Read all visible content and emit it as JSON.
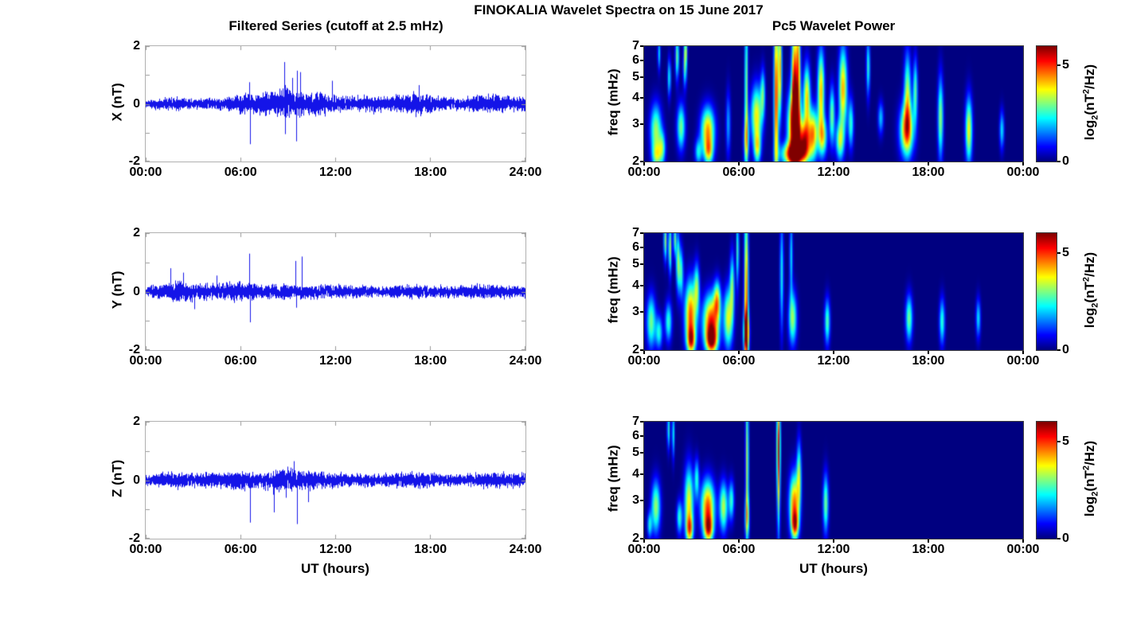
{
  "figure": {
    "title": "FINOKALIA Wavelet Spectra on 15 June 2017",
    "background": "#ffffff",
    "line_color": "#0000ee",
    "colormap": "jet"
  },
  "chart_data": [
    {
      "type": "line",
      "id": "x-filtered-series",
      "title": "Filtered Series (cutoff at 2.5 mHz)",
      "ylabel": "X (nT)",
      "xlabel": "",
      "ylim": [
        -2,
        2
      ],
      "yticks": [
        {
          "v": 2,
          "label": "2"
        },
        {
          "v": 0,
          "label": "0"
        },
        {
          "v": -2,
          "label": "-2"
        }
      ],
      "yticks_minor": [
        1,
        -1
      ],
      "x_range_hours": [
        0,
        24
      ],
      "xticks": [
        {
          "h": 0,
          "label": "00:00"
        },
        {
          "h": 6,
          "label": "06:00"
        },
        {
          "h": 12,
          "label": "12:00"
        },
        {
          "h": 18,
          "label": "18:00"
        },
        {
          "h": 24,
          "label": "24:00"
        }
      ],
      "envelope_step_hours": 1,
      "envelope_nT": [
        0.16,
        0.2,
        0.24,
        0.18,
        0.2,
        0.24,
        0.38,
        0.36,
        0.48,
        0.55,
        0.42,
        0.45,
        0.32,
        0.28,
        0.32,
        0.3,
        0.3,
        0.42,
        0.32,
        0.24,
        0.2,
        0.32,
        0.34,
        0.28,
        0.26
      ],
      "spikes_t_v": [
        [
          6.55,
          0.75
        ],
        [
          6.6,
          -1.4
        ],
        [
          8.8,
          1.45
        ],
        [
          8.85,
          -1.05
        ],
        [
          9.3,
          0.9
        ],
        [
          9.55,
          -1.3
        ],
        [
          9.6,
          1.15
        ],
        [
          9.8,
          1.1
        ],
        [
          11.8,
          0.8
        ],
        [
          17.3,
          0.65
        ]
      ]
    },
    {
      "type": "line",
      "id": "y-filtered-series",
      "title": "",
      "ylabel": "Y (nT)",
      "xlabel": "",
      "ylim": [
        -2,
        2
      ],
      "yticks": [
        {
          "v": 2,
          "label": "2"
        },
        {
          "v": 0,
          "label": "0"
        },
        {
          "v": -2,
          "label": "-2"
        }
      ],
      "yticks_minor": [
        1,
        -1
      ],
      "x_range_hours": [
        0,
        24
      ],
      "xticks": [
        {
          "h": 0,
          "label": "00:00"
        },
        {
          "h": 6,
          "label": "06:00"
        },
        {
          "h": 12,
          "label": "12:00"
        },
        {
          "h": 18,
          "label": "18:00"
        },
        {
          "h": 24,
          "label": "24:00"
        }
      ],
      "envelope_step_hours": 1,
      "envelope_nT": [
        0.18,
        0.26,
        0.38,
        0.3,
        0.32,
        0.28,
        0.34,
        0.28,
        0.28,
        0.3,
        0.26,
        0.28,
        0.24,
        0.2,
        0.22,
        0.18,
        0.22,
        0.26,
        0.22,
        0.2,
        0.2,
        0.26,
        0.24,
        0.22,
        0.22
      ],
      "spikes_t_v": [
        [
          1.6,
          0.8
        ],
        [
          2.4,
          0.65
        ],
        [
          3.1,
          -0.6
        ],
        [
          4.5,
          0.55
        ],
        [
          6.55,
          1.3
        ],
        [
          6.6,
          -1.05
        ],
        [
          9.5,
          1.05
        ],
        [
          9.55,
          -0.55
        ],
        [
          9.9,
          1.2
        ]
      ]
    },
    {
      "type": "line",
      "id": "z-filtered-series",
      "title": "",
      "ylabel": "Z (nT)",
      "xlabel": "UT (hours)",
      "ylim": [
        -2,
        2
      ],
      "yticks": [
        {
          "v": 2,
          "label": "2"
        },
        {
          "v": 0,
          "label": "0"
        },
        {
          "v": -2,
          "label": "-2"
        }
      ],
      "yticks_minor": [
        1,
        -1
      ],
      "x_range_hours": [
        0,
        24
      ],
      "xticks": [
        {
          "h": 0,
          "label": "00:00"
        },
        {
          "h": 6,
          "label": "06:00"
        },
        {
          "h": 12,
          "label": "12:00"
        },
        {
          "h": 18,
          "label": "18:00"
        },
        {
          "h": 24,
          "label": "24:00"
        }
      ],
      "envelope_step_hours": 1,
      "envelope_nT": [
        0.18,
        0.26,
        0.3,
        0.22,
        0.28,
        0.28,
        0.34,
        0.3,
        0.36,
        0.42,
        0.34,
        0.3,
        0.28,
        0.22,
        0.26,
        0.22,
        0.3,
        0.26,
        0.3,
        0.22,
        0.22,
        0.26,
        0.28,
        0.26,
        0.26
      ],
      "spikes_t_v": [
        [
          6.6,
          -1.45
        ],
        [
          8.1,
          -1.1
        ],
        [
          8.9,
          -0.6
        ],
        [
          9.4,
          0.65
        ],
        [
          9.6,
          -1.5
        ],
        [
          10.3,
          -0.75
        ]
      ]
    },
    {
      "type": "heatmap",
      "id": "x-wavelet-power",
      "title": "Pc5 Wavelet Power",
      "ylabel": "freq (mHz)",
      "xlabel": "",
      "yscale": "log",
      "ylim_mhz": [
        2,
        7
      ],
      "yticks": [
        7,
        6,
        5,
        4,
        3,
        2
      ],
      "x_range_hours": [
        0,
        24
      ],
      "xticks": [
        {
          "h": 0,
          "label": "00:00"
        },
        {
          "h": 6,
          "label": "06:00"
        },
        {
          "h": 12,
          "label": "12:00"
        },
        {
          "h": 18,
          "label": "18:00"
        },
        {
          "h": 24,
          "label": "00:00"
        }
      ],
      "colorbar": {
        "min": 0,
        "max": 6,
        "ticks": [
          {
            "v": 5,
            "label": "5"
          },
          {
            "v": 0,
            "label": "0"
          }
        ],
        "label_parts": {
          "pre": "log",
          "sub": "2",
          "mid": "(nT",
          "sup": "2",
          "post": "/Hz)"
        }
      },
      "blob_format": [
        "t_hours",
        "freq_mhz",
        "sigma_t_hours",
        "sigma_lognorm",
        "power_log2"
      ],
      "blobs": [
        [
          0.7,
          2.8,
          0.25,
          0.16,
          3.2
        ],
        [
          0.75,
          2.1,
          0.2,
          0.08,
          2.5
        ],
        [
          1.1,
          2.3,
          0.15,
          0.1,
          2.5
        ],
        [
          0.9,
          6.5,
          0.06,
          0.1,
          2.2
        ],
        [
          1.55,
          5.0,
          0.07,
          0.12,
          2.4
        ],
        [
          2.05,
          6.3,
          0.08,
          0.14,
          3.0
        ],
        [
          2.3,
          2.9,
          0.18,
          0.14,
          3.0
        ],
        [
          2.55,
          5.6,
          0.08,
          0.12,
          2.8
        ],
        [
          2.6,
          6.8,
          0.07,
          0.08,
          2.6
        ],
        [
          3.4,
          2.2,
          0.15,
          0.08,
          2.2
        ],
        [
          4.0,
          2.8,
          0.3,
          0.14,
          4.3
        ],
        [
          4.05,
          2.2,
          0.2,
          0.08,
          3.0
        ],
        [
          5.3,
          3.0,
          0.1,
          0.2,
          1.8
        ],
        [
          6.45,
          4.5,
          0.07,
          0.5,
          3.2
        ],
        [
          6.45,
          2.5,
          0.12,
          0.15,
          2.6
        ],
        [
          7.1,
          3.3,
          0.25,
          0.18,
          3.8
        ],
        [
          7.15,
          2.3,
          0.15,
          0.1,
          3.0
        ],
        [
          7.5,
          4.2,
          0.1,
          0.15,
          2.5
        ],
        [
          8.35,
          4.0,
          0.1,
          0.55,
          5.2
        ],
        [
          8.6,
          5.5,
          0.08,
          0.3,
          4.0
        ],
        [
          9.5,
          2.9,
          0.28,
          0.22,
          6.0
        ],
        [
          9.5,
          4.8,
          0.12,
          0.35,
          5.0
        ],
        [
          9.75,
          5.5,
          0.1,
          0.4,
          4.2
        ],
        [
          9.5,
          2.15,
          0.55,
          0.07,
          5.2
        ],
        [
          10.15,
          2.5,
          0.25,
          0.12,
          4.6
        ],
        [
          10.3,
          4.0,
          0.15,
          0.2,
          4.0
        ],
        [
          10.7,
          2.7,
          0.2,
          0.15,
          4.2
        ],
        [
          11.2,
          4.3,
          0.15,
          0.25,
          4.2
        ],
        [
          11.3,
          2.6,
          0.2,
          0.12,
          3.4
        ],
        [
          11.9,
          3.3,
          0.12,
          0.18,
          3.0
        ],
        [
          12.6,
          4.4,
          0.18,
          0.25,
          4.3
        ],
        [
          12.4,
          2.5,
          0.18,
          0.12,
          3.2
        ],
        [
          13.1,
          3.0,
          0.12,
          0.15,
          2.6
        ],
        [
          14.2,
          5.6,
          0.08,
          0.18,
          2.6
        ],
        [
          15.0,
          3.2,
          0.12,
          0.1,
          2.0
        ],
        [
          16.65,
          2.8,
          0.3,
          0.16,
          4.6
        ],
        [
          16.7,
          4.2,
          0.15,
          0.25,
          3.2
        ],
        [
          17.2,
          4.3,
          0.1,
          0.2,
          2.8
        ],
        [
          18.8,
          3.2,
          0.12,
          0.25,
          3.2
        ],
        [
          20.6,
          2.8,
          0.15,
          0.2,
          3.8
        ],
        [
          22.7,
          2.8,
          0.1,
          0.12,
          2.2
        ]
      ]
    },
    {
      "type": "heatmap",
      "id": "y-wavelet-power",
      "title": "",
      "ylabel": "freq (mHz)",
      "xlabel": "",
      "yscale": "log",
      "ylim_mhz": [
        2,
        7
      ],
      "yticks": [
        7,
        6,
        5,
        4,
        3,
        2
      ],
      "x_range_hours": [
        0,
        24
      ],
      "xticks": [
        {
          "h": 0,
          "label": "00:00"
        },
        {
          "h": 6,
          "label": "06:00"
        },
        {
          "h": 12,
          "label": "12:00"
        },
        {
          "h": 18,
          "label": "18:00"
        },
        {
          "h": 24,
          "label": "00:00"
        }
      ],
      "colorbar": {
        "min": 0,
        "max": 6,
        "ticks": [
          {
            "v": 5,
            "label": "5"
          },
          {
            "v": 0,
            "label": "0"
          }
        ],
        "label_parts": {
          "pre": "log",
          "sub": "2",
          "mid": "(nT",
          "sup": "2",
          "post": "/Hz)"
        }
      },
      "blob_format": [
        "t_hours",
        "freq_mhz",
        "sigma_t_hours",
        "sigma_lognorm",
        "power_log2"
      ],
      "blobs": [
        [
          0.4,
          2.7,
          0.2,
          0.16,
          3.0
        ],
        [
          0.9,
          2.4,
          0.15,
          0.1,
          2.4
        ],
        [
          1.3,
          6.5,
          0.07,
          0.12,
          3.2
        ],
        [
          1.6,
          6.0,
          0.07,
          0.15,
          3.4
        ],
        [
          1.9,
          6.6,
          0.06,
          0.1,
          3.0
        ],
        [
          1.5,
          2.7,
          0.15,
          0.12,
          2.6
        ],
        [
          2.1,
          5.2,
          0.08,
          0.18,
          3.0
        ],
        [
          2.3,
          4.6,
          0.1,
          0.15,
          2.6
        ],
        [
          2.9,
          2.9,
          0.25,
          0.2,
          4.8
        ],
        [
          2.95,
          2.2,
          0.18,
          0.08,
          3.6
        ],
        [
          3.3,
          3.9,
          0.12,
          0.15,
          2.8
        ],
        [
          4.2,
          2.7,
          0.35,
          0.16,
          5.0
        ],
        [
          4.25,
          2.2,
          0.25,
          0.08,
          4.2
        ],
        [
          4.6,
          3.4,
          0.15,
          0.12,
          3.4
        ],
        [
          5.3,
          2.8,
          0.2,
          0.18,
          3.6
        ],
        [
          5.55,
          4.0,
          0.1,
          0.2,
          2.8
        ],
        [
          5.9,
          5.8,
          0.06,
          0.22,
          2.8
        ],
        [
          6.45,
          3.5,
          0.09,
          0.55,
          4.8
        ],
        [
          6.45,
          2.4,
          0.12,
          0.12,
          4.4
        ],
        [
          8.7,
          4.5,
          0.08,
          0.35,
          2.4
        ],
        [
          9.4,
          2.8,
          0.18,
          0.16,
          3.2
        ],
        [
          9.3,
          5.5,
          0.07,
          0.25,
          2.2
        ],
        [
          11.6,
          2.7,
          0.12,
          0.14,
          2.8
        ],
        [
          16.8,
          2.8,
          0.15,
          0.14,
          3.0
        ],
        [
          18.9,
          2.7,
          0.12,
          0.14,
          2.6
        ],
        [
          21.2,
          2.8,
          0.1,
          0.12,
          2.2
        ]
      ]
    },
    {
      "type": "heatmap",
      "id": "z-wavelet-power",
      "title": "",
      "ylabel": "freq (mHz)",
      "xlabel": "UT (hours)",
      "yscale": "log",
      "ylim_mhz": [
        2,
        7
      ],
      "yticks": [
        7,
        6,
        5,
        4,
        3,
        2
      ],
      "x_range_hours": [
        0,
        24
      ],
      "xticks": [
        {
          "h": 0,
          "label": "00:00"
        },
        {
          "h": 6,
          "label": "06:00"
        },
        {
          "h": 12,
          "label": "12:00"
        },
        {
          "h": 18,
          "label": "18:00"
        },
        {
          "h": 24,
          "label": "00:00"
        }
      ],
      "colorbar": {
        "min": 0,
        "max": 6,
        "ticks": [
          {
            "v": 5,
            "label": "5"
          },
          {
            "v": 0,
            "label": "0"
          }
        ],
        "label_parts": {
          "pre": "log",
          "sub": "2",
          "mid": "(nT",
          "sup": "2",
          "post": "/Hz)"
        }
      },
      "blob_format": [
        "t_hours",
        "freq_mhz",
        "sigma_t_hours",
        "sigma_lognorm",
        "power_log2"
      ],
      "blobs": [
        [
          0.3,
          2.3,
          0.1,
          0.08,
          2.2
        ],
        [
          0.7,
          2.8,
          0.2,
          0.16,
          3.2
        ],
        [
          1.5,
          6.5,
          0.06,
          0.12,
          2.6
        ],
        [
          1.8,
          6.2,
          0.06,
          0.15,
          2.4
        ],
        [
          2.2,
          2.5,
          0.12,
          0.1,
          2.6
        ],
        [
          2.8,
          2.9,
          0.2,
          0.22,
          3.8
        ],
        [
          2.85,
          2.2,
          0.15,
          0.08,
          3.2
        ],
        [
          3.3,
          3.8,
          0.1,
          0.12,
          2.4
        ],
        [
          4.0,
          2.8,
          0.3,
          0.16,
          4.8
        ],
        [
          4.05,
          2.2,
          0.2,
          0.08,
          3.8
        ],
        [
          5.0,
          2.8,
          0.18,
          0.15,
          3.4
        ],
        [
          5.5,
          3.0,
          0.12,
          0.12,
          2.6
        ],
        [
          6.5,
          4.5,
          0.07,
          0.5,
          3.4
        ],
        [
          6.5,
          2.5,
          0.1,
          0.12,
          2.4
        ],
        [
          8.5,
          5.8,
          0.08,
          0.25,
          4.0
        ],
        [
          8.5,
          3.5,
          0.07,
          0.35,
          3.0
        ],
        [
          9.5,
          2.9,
          0.22,
          0.18,
          4.6
        ],
        [
          9.55,
          2.3,
          0.15,
          0.08,
          3.6
        ],
        [
          9.8,
          4.0,
          0.1,
          0.2,
          3.0
        ],
        [
          11.5,
          2.9,
          0.12,
          0.18,
          3.0
        ]
      ]
    }
  ]
}
